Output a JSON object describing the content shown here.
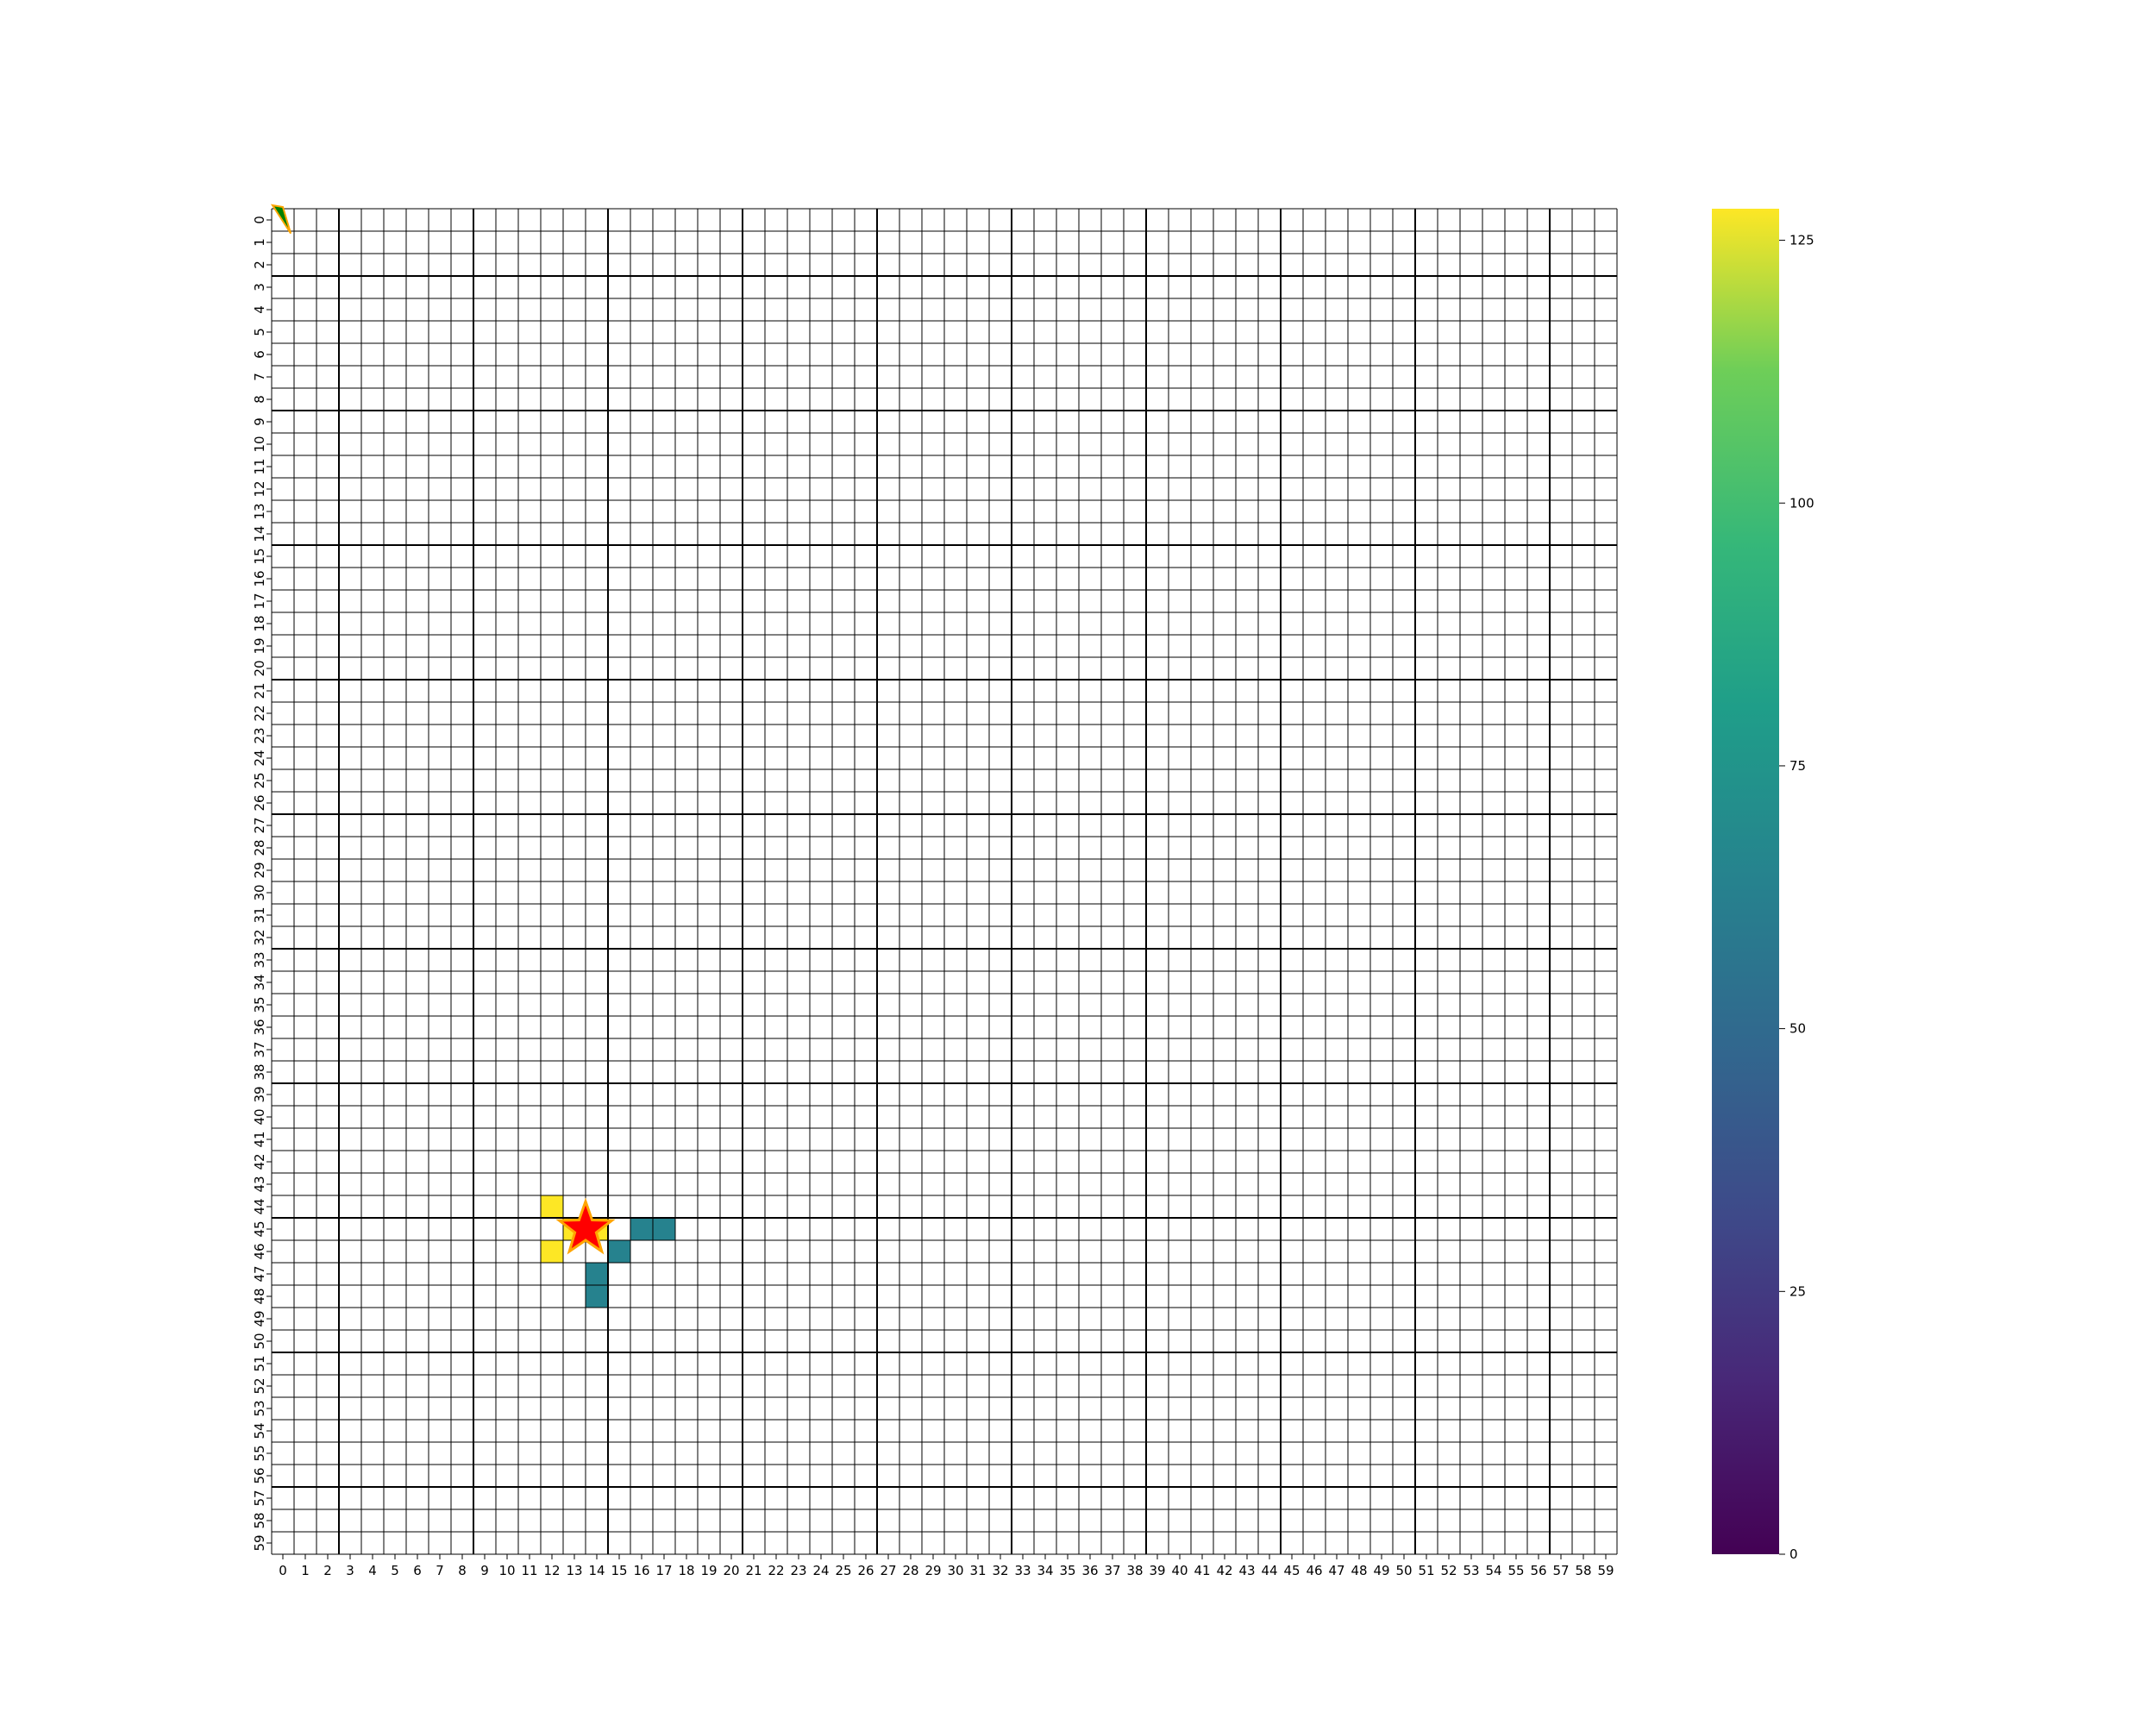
{
  "chart_data": {
    "type": "heatmap",
    "title": "",
    "xlabel": "",
    "ylabel": "",
    "rows": 60,
    "cols": 60,
    "x_ticks": [
      "0",
      "1",
      "2",
      "3",
      "4",
      "5",
      "6",
      "7",
      "8",
      "9",
      "10",
      "11",
      "12",
      "13",
      "14",
      "15",
      "16",
      "17",
      "18",
      "19",
      "20",
      "21",
      "22",
      "23",
      "24",
      "25",
      "26",
      "27",
      "28",
      "29",
      "30",
      "31",
      "32",
      "33",
      "34",
      "35",
      "36",
      "37",
      "38",
      "39",
      "40",
      "41",
      "42",
      "43",
      "44",
      "45",
      "46",
      "47",
      "48",
      "49",
      "50",
      "51",
      "52",
      "53",
      "54",
      "55",
      "56",
      "57",
      "58",
      "59"
    ],
    "y_ticks": [
      "0",
      "1",
      "2",
      "3",
      "4",
      "5",
      "6",
      "7",
      "8",
      "9",
      "10",
      "11",
      "12",
      "13",
      "14",
      "15",
      "16",
      "17",
      "18",
      "19",
      "20",
      "21",
      "22",
      "23",
      "24",
      "25",
      "26",
      "27",
      "28",
      "29",
      "30",
      "31",
      "32",
      "33",
      "34",
      "35",
      "36",
      "37",
      "38",
      "39",
      "40",
      "41",
      "42",
      "43",
      "44",
      "45",
      "46",
      "47",
      "48",
      "49",
      "50",
      "51",
      "52",
      "53",
      "54",
      "55",
      "56",
      "57",
      "58",
      "59"
    ],
    "cells": [
      {
        "row": 44,
        "col": 12,
        "value": 128
      },
      {
        "row": 45,
        "col": 13,
        "value": 128
      },
      {
        "row": 45,
        "col": 14,
        "value": 128
      },
      {
        "row": 46,
        "col": 12,
        "value": 128
      },
      {
        "row": 45,
        "col": 16,
        "value": 64
      },
      {
        "row": 45,
        "col": 17,
        "value": 64
      },
      {
        "row": 46,
        "col": 15,
        "value": 64
      },
      {
        "row": 47,
        "col": 14,
        "value": 64
      },
      {
        "row": 48,
        "col": 14,
        "value": 64
      }
    ],
    "empty_cell_color": "#ffffff",
    "minor_grid_color": "#000000",
    "major_grid_every": 6,
    "colorbar": {
      "colormap": "viridis",
      "vmin": 0,
      "vmax": 128,
      "ticks": [
        "0",
        "25",
        "50",
        "75",
        "100",
        "125"
      ],
      "tick_values": [
        0,
        25,
        50,
        75,
        100,
        125
      ]
    },
    "markers": [
      {
        "type": "star",
        "row": 45,
        "col": 13.5,
        "color": "#ff0000",
        "edge_color": "#ffa500"
      },
      {
        "type": "agent-triangle",
        "row": 0,
        "col": 0,
        "color": "#008000",
        "edge_color": "#ffa500"
      }
    ]
  }
}
